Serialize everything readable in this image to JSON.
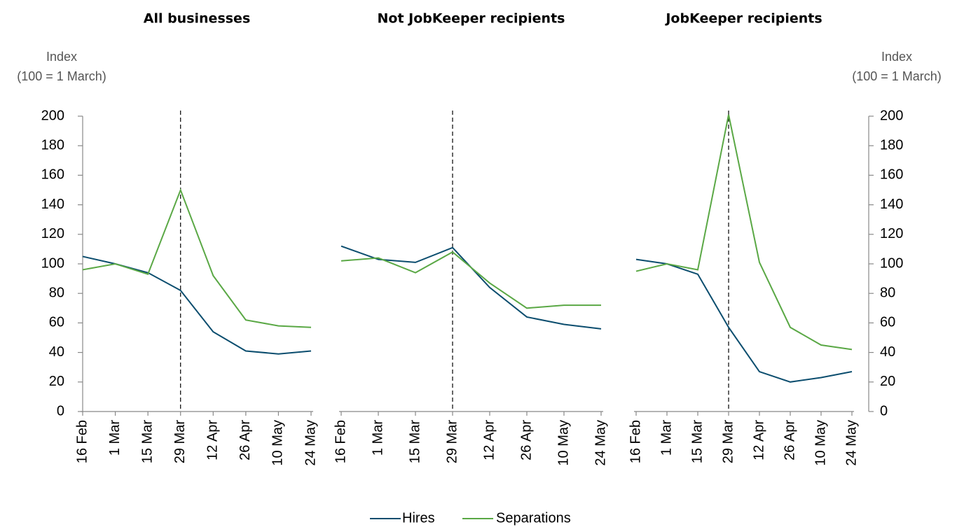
{
  "chart_data": [
    {
      "type": "line",
      "title": "All businesses",
      "ylabel": [
        "Index",
        "(100 = 1 March)"
      ],
      "categories": [
        "16 Feb",
        "1 Mar",
        "15 Mar",
        "29 Mar",
        "12 Apr",
        "26 Apr",
        "10 May",
        "24 May"
      ],
      "series": [
        {
          "name": "Hires",
          "color": "#0b4d6e",
          "values": [
            105,
            100,
            94,
            82,
            54,
            41,
            39,
            41
          ]
        },
        {
          "name": "Separations",
          "color": "#5aa845",
          "values": [
            96,
            100,
            93,
            150,
            92,
            62,
            58,
            57
          ]
        }
      ],
      "ylim": [
        0,
        200
      ],
      "yticks": [
        0,
        20,
        40,
        60,
        80,
        100,
        120,
        140,
        160,
        180,
        200
      ]
    },
    {
      "type": "line",
      "title": "Not JobKeeper recipients",
      "categories": [
        "16 Feb",
        "1 Mar",
        "15 Mar",
        "29 Mar",
        "12 Apr",
        "26 Apr",
        "10 May",
        "24 May"
      ],
      "series": [
        {
          "color": "#0b4d6e",
          "values": [
            112,
            103,
            101,
            111,
            84,
            64,
            59,
            56
          ]
        },
        {
          "color": "#5aa845",
          "values": [
            102,
            104,
            94,
            108,
            87,
            70,
            72,
            72
          ]
        }
      ],
      "ylim": [
        0,
        200
      ]
    },
    {
      "type": "line",
      "title": "JobKeeper recipients",
      "ylabel": [
        "Index",
        "(100 = 1 March)"
      ],
      "categories": [
        "16 Feb",
        "1 Mar",
        "15 Mar",
        "29 Mar",
        "12 Apr",
        "26 Apr",
        "10 May",
        "24 May"
      ],
      "series": [
        {
          "color": "#0b4d6e",
          "values": [
            103,
            100,
            93,
            57,
            27,
            20,
            23,
            27
          ]
        },
        {
          "color": "#5aa845",
          "values": [
            95,
            100,
            96,
            201,
            101,
            57,
            45,
            42
          ]
        }
      ],
      "ylim": [
        0,
        200
      ],
      "yticks": [
        0,
        20,
        40,
        60,
        80,
        100,
        120,
        140,
        160,
        180,
        200
      ]
    }
  ]
}
